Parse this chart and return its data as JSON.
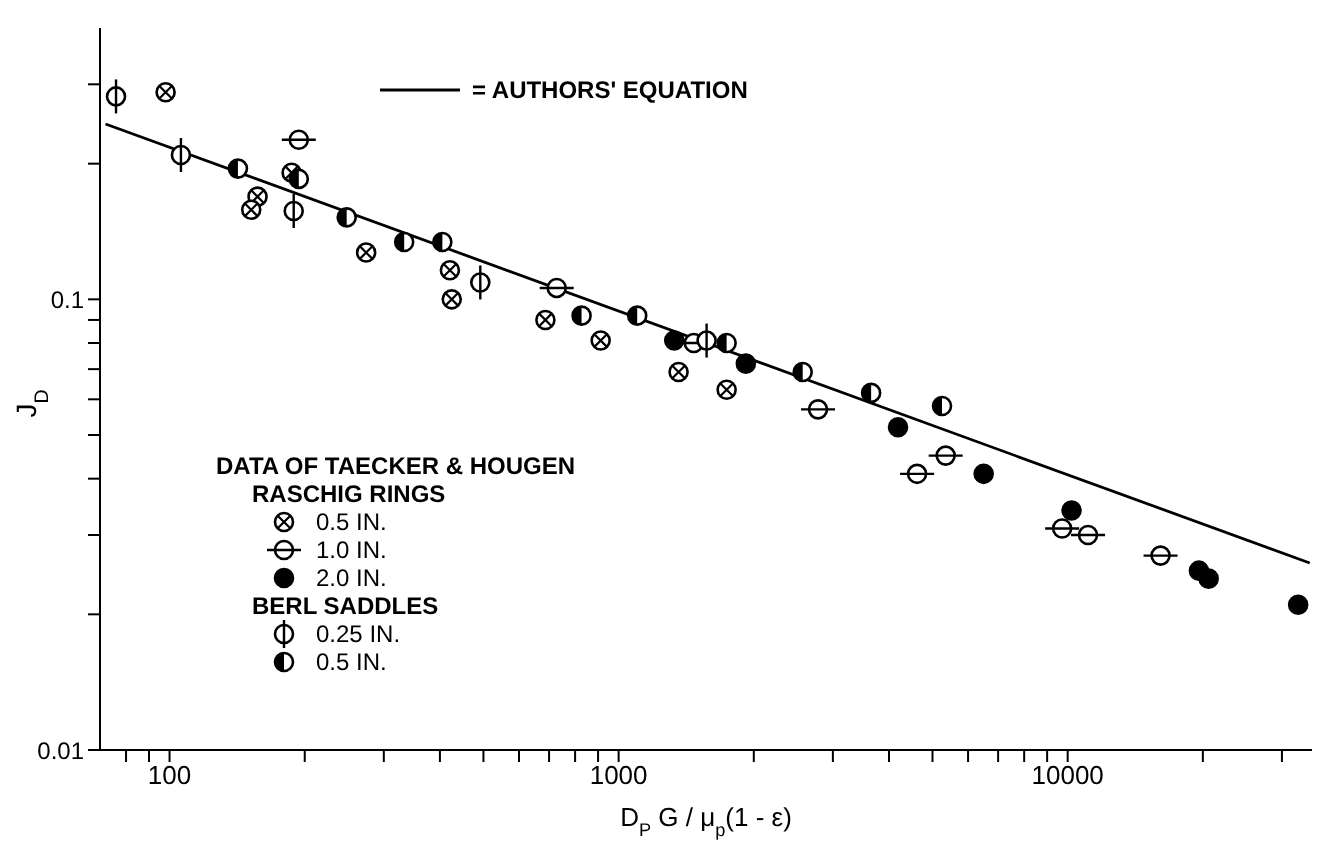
{
  "chart_data": {
    "type": "scatter",
    "xlabel": "D$_{P}$ G / μ$_{p}$(1 - ε)",
    "ylabel": "J$_{D}$",
    "legend_title": "DATA OF TAECKER & HOUGEN",
    "annotations": [
      "RASCHIG RINGS",
      "BERL SADDLES"
    ],
    "log": "xy",
    "xlim": [
      70,
      35000
    ],
    "ylim": [
      0.01,
      0.4
    ],
    "xticks": [
      {
        "value": 80,
        "label": null
      },
      {
        "value": 90,
        "label": null
      },
      100,
      {
        "value": 200,
        "label": null
      },
      {
        "value": 300,
        "label": null
      },
      {
        "value": 400,
        "label": null
      },
      {
        "value": 500,
        "label": null
      },
      {
        "value": 600,
        "label": null
      },
      {
        "value": 700,
        "label": null
      },
      {
        "value": 800,
        "label": null
      },
      {
        "value": 900,
        "label": null
      },
      1000,
      {
        "value": 2000,
        "label": null
      },
      {
        "value": 3000,
        "label": null
      },
      {
        "value": 4000,
        "label": null
      },
      {
        "value": 5000,
        "label": null
      },
      {
        "value": 6000,
        "label": null
      },
      {
        "value": 7000,
        "label": null
      },
      {
        "value": 8000,
        "label": null
      },
      {
        "value": 9000,
        "label": null
      },
      10000,
      {
        "value": 20000,
        "label": null
      },
      {
        "value": 30000,
        "label": null
      }
    ],
    "yticks": [
      0.01,
      {
        "value": 0.02,
        "label": null
      },
      {
        "value": 0.03,
        "label": null
      },
      {
        "value": 0.04,
        "label": null
      },
      {
        "value": 0.05,
        "label": null
      },
      {
        "value": 0.06,
        "label": null
      },
      {
        "value": 0.07,
        "label": null
      },
      {
        "value": 0.08,
        "label": null
      },
      {
        "value": 0.09,
        "label": null
      },
      0.1,
      {
        "value": 0.2,
        "label": null
      },
      {
        "value": 0.3,
        "label": null
      }
    ],
    "legend": "left",
    "series": [
      {
        "name": "= AUTHORS' EQUATION",
        "type": "line",
        "marker": "none",
        "color": "#000000",
        "x": [
          72,
          34600
        ],
        "values": [
          0.245,
          0.026
        ]
      },
      {
        "name": "0.5 IN.",
        "marker": "circle",
        "color": "#000000",
        "x": [
          98,
          157,
          152,
          187,
          274,
          421,
          425,
          687,
          912,
          1360,
          1740
        ],
        "values": [
          0.288,
          0.169,
          0.158,
          0.191,
          0.127,
          0.116,
          0.1,
          0.09,
          0.081,
          0.069,
          0.063
        ]
      },
      {
        "name": "1.0 IN.",
        "marker": "circle",
        "color": "#000000",
        "x": [
          194,
          728,
          1470,
          2780,
          4620,
          5350,
          9720,
          11100,
          16100
        ],
        "values": [
          0.226,
          0.106,
          0.08,
          0.057,
          0.041,
          0.045,
          0.031,
          0.03,
          0.027
        ]
      },
      {
        "name": "2.0 IN.",
        "marker": "circle",
        "color": "#000000",
        "x": [
          1330,
          1920,
          4190,
          6500,
          10200,
          19600,
          20600,
          32600
        ],
        "values": [
          0.081,
          0.072,
          0.052,
          0.041,
          0.034,
          0.025,
          0.024,
          0.021
        ]
      },
      {
        "name": "0.25 IN.",
        "marker": "circle",
        "color": "#000000",
        "x": [
          76,
          106,
          189,
          492,
          1570
        ],
        "values": [
          0.282,
          0.209,
          0.157,
          0.109,
          0.081
        ]
      },
      {
        "name": "0.5 IN.",
        "marker": "circle",
        "color": "#000000",
        "x": [
          142,
          194,
          248,
          333,
          405,
          827,
          1100,
          1740,
          2570,
          3650,
          5250
        ],
        "values": [
          0.195,
          0.185,
          0.152,
          0.134,
          0.134,
          0.092,
          0.092,
          0.08,
          0.069,
          0.062,
          0.058
        ]
      }
    ]
  }
}
